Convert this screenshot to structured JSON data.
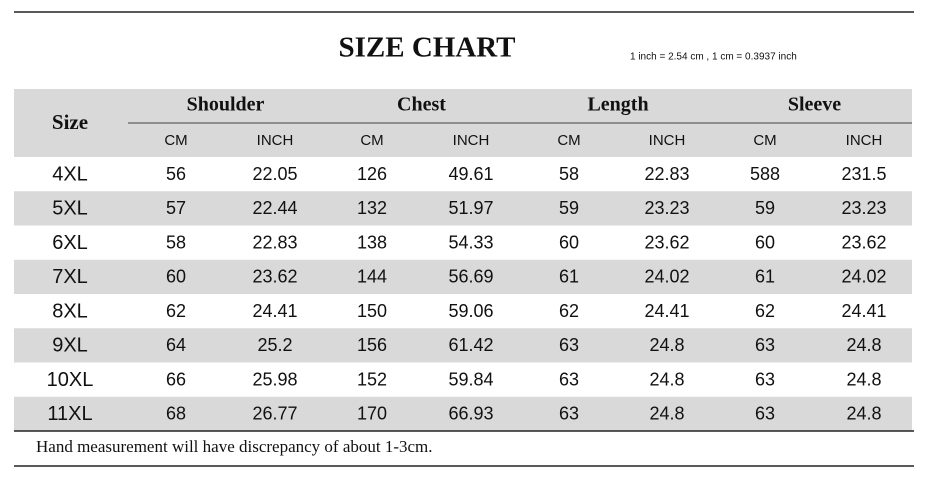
{
  "header": {
    "title": "SIZE CHART",
    "note": "1 inch = 2.54 cm , 1 cm = 0.3937 inch"
  },
  "table": {
    "size_label": "Size",
    "groups": [
      "Shoulder",
      "Chest",
      "Length",
      "Sleeve"
    ],
    "units": [
      "CM",
      "INCH",
      "CM",
      "INCH",
      "CM",
      "INCH",
      "CM",
      "INCH"
    ],
    "rows": [
      [
        "4XL",
        "56",
        "22.05",
        "126",
        "49.61",
        "58",
        "22.83",
        "588",
        "231.5"
      ],
      [
        "5XL",
        "57",
        "22.44",
        "132",
        "51.97",
        "59",
        "23.23",
        "59",
        "23.23"
      ],
      [
        "6XL",
        "58",
        "22.83",
        "138",
        "54.33",
        "60",
        "23.62",
        "60",
        "23.62"
      ],
      [
        "7XL",
        "60",
        "23.62",
        "144",
        "56.69",
        "61",
        "24.02",
        "61",
        "24.02"
      ],
      [
        "8XL",
        "62",
        "24.41",
        "150",
        "59.06",
        "62",
        "24.41",
        "62",
        "24.41"
      ],
      [
        "9XL",
        "64",
        "25.2",
        "156",
        "61.42",
        "63",
        "24.8",
        "63",
        "24.8"
      ],
      [
        "10XL",
        "66",
        "25.98",
        "152",
        "59.84",
        "63",
        "24.8",
        "63",
        "24.8"
      ],
      [
        "11XL",
        "68",
        "26.77",
        "170",
        "66.93",
        "63",
        "24.8",
        "63",
        "24.8"
      ]
    ]
  },
  "footer": {
    "text": "Hand measurement will have discrepancy of about 1-3cm."
  }
}
